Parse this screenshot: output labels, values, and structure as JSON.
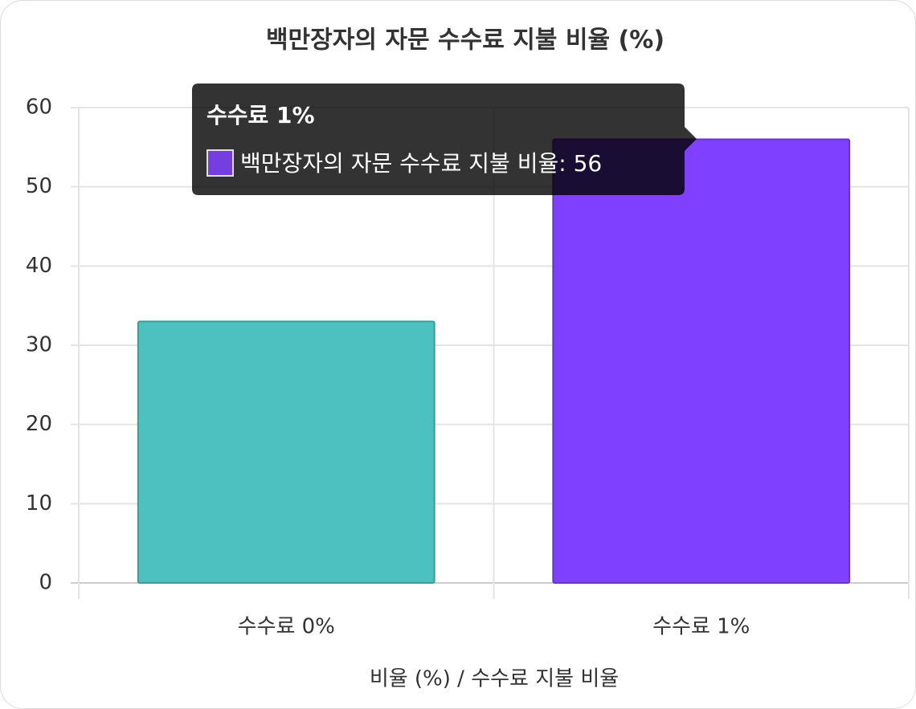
{
  "chart_data": {
    "type": "bar",
    "title": "백만장자의 자문 수수료 지불 비율 (%)",
    "x_label": "비율 (%) / 수수료 지불 비율",
    "categories": [
      "수수료 0%",
      "수수료 1%"
    ],
    "series": [
      {
        "name": "백만장자의 자문 수수료 지불 비율",
        "colors": [
          "#4dc0c0",
          "#8040ff"
        ],
        "values": [
          33,
          56
        ]
      }
    ],
    "ylim": [
      0,
      60
    ],
    "yticks": [
      0,
      10,
      20,
      30,
      40,
      50,
      60
    ],
    "grid": true,
    "tooltip": {
      "title": "수수료 1%",
      "text": "백만장자의 자문 수수료 지불 비율: 56"
    }
  }
}
